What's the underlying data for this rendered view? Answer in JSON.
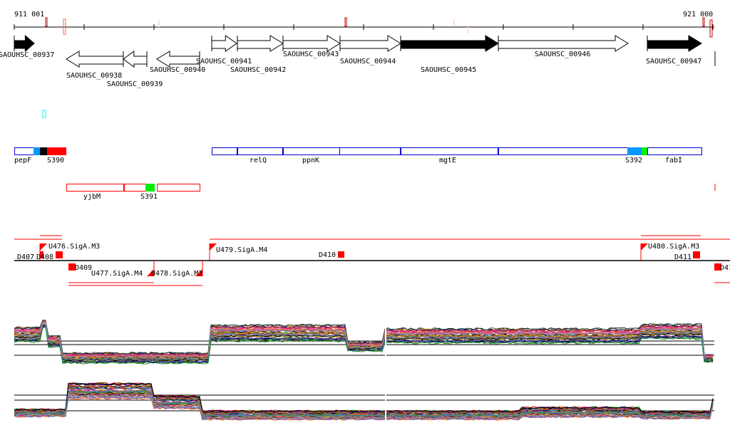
{
  "ruler": {
    "start_label": "911 001",
    "end_label": "921 000"
  },
  "genes": [
    {
      "label": "SAOUHSC_00937",
      "strand": "+",
      "fill": "#000000"
    },
    {
      "label": "SAOUHSC_00938",
      "strand": "-",
      "fill": "#ffffff"
    },
    {
      "label": "SAOUHSC_00939",
      "strand": "-",
      "fill": "#ffffff"
    },
    {
      "label": "SAOUHSC_00940",
      "strand": "-",
      "fill": "#ffffff"
    },
    {
      "label": "SAOUHSC_00941",
      "strand": "+",
      "fill": "#ffffff"
    },
    {
      "label": "SAOUHSC_00942",
      "strand": "+",
      "fill": "#ffffff"
    },
    {
      "label": "SAOUHSC_00943",
      "strand": "+",
      "fill": "#ffffff"
    },
    {
      "label": "SAOUHSC_00944",
      "strand": "+",
      "fill": "#ffffff"
    },
    {
      "label": "SAOUHSC_00945",
      "strand": "+",
      "fill": "#000000"
    },
    {
      "label": "SAOUHSC_00946",
      "strand": "+",
      "fill": "#ffffff"
    },
    {
      "label": "SAOUHSC_00947",
      "strand": "+",
      "fill": "#000000"
    }
  ],
  "features_plus": [
    "pepF",
    "S390",
    "relQ",
    "ppnK",
    "mgtE",
    "S392",
    "fabI"
  ],
  "features_minus": [
    "yjbM",
    "S391"
  ],
  "operon_labels": [
    "D407",
    "D408",
    "U476.SigA.M3",
    "D409",
    "U477.SigA.M4",
    "U478.SigA.M3",
    "U479.SigA.M4",
    "D410",
    "U480.SigA.M3",
    "D411",
    "D41"
  ],
  "colors": {
    "plus_feature": "#0000cc",
    "minus_feature": "#ff0000",
    "operon": "#ff0000",
    "accent_blue": "#0099ff",
    "accent_green": "#00ee00"
  }
}
